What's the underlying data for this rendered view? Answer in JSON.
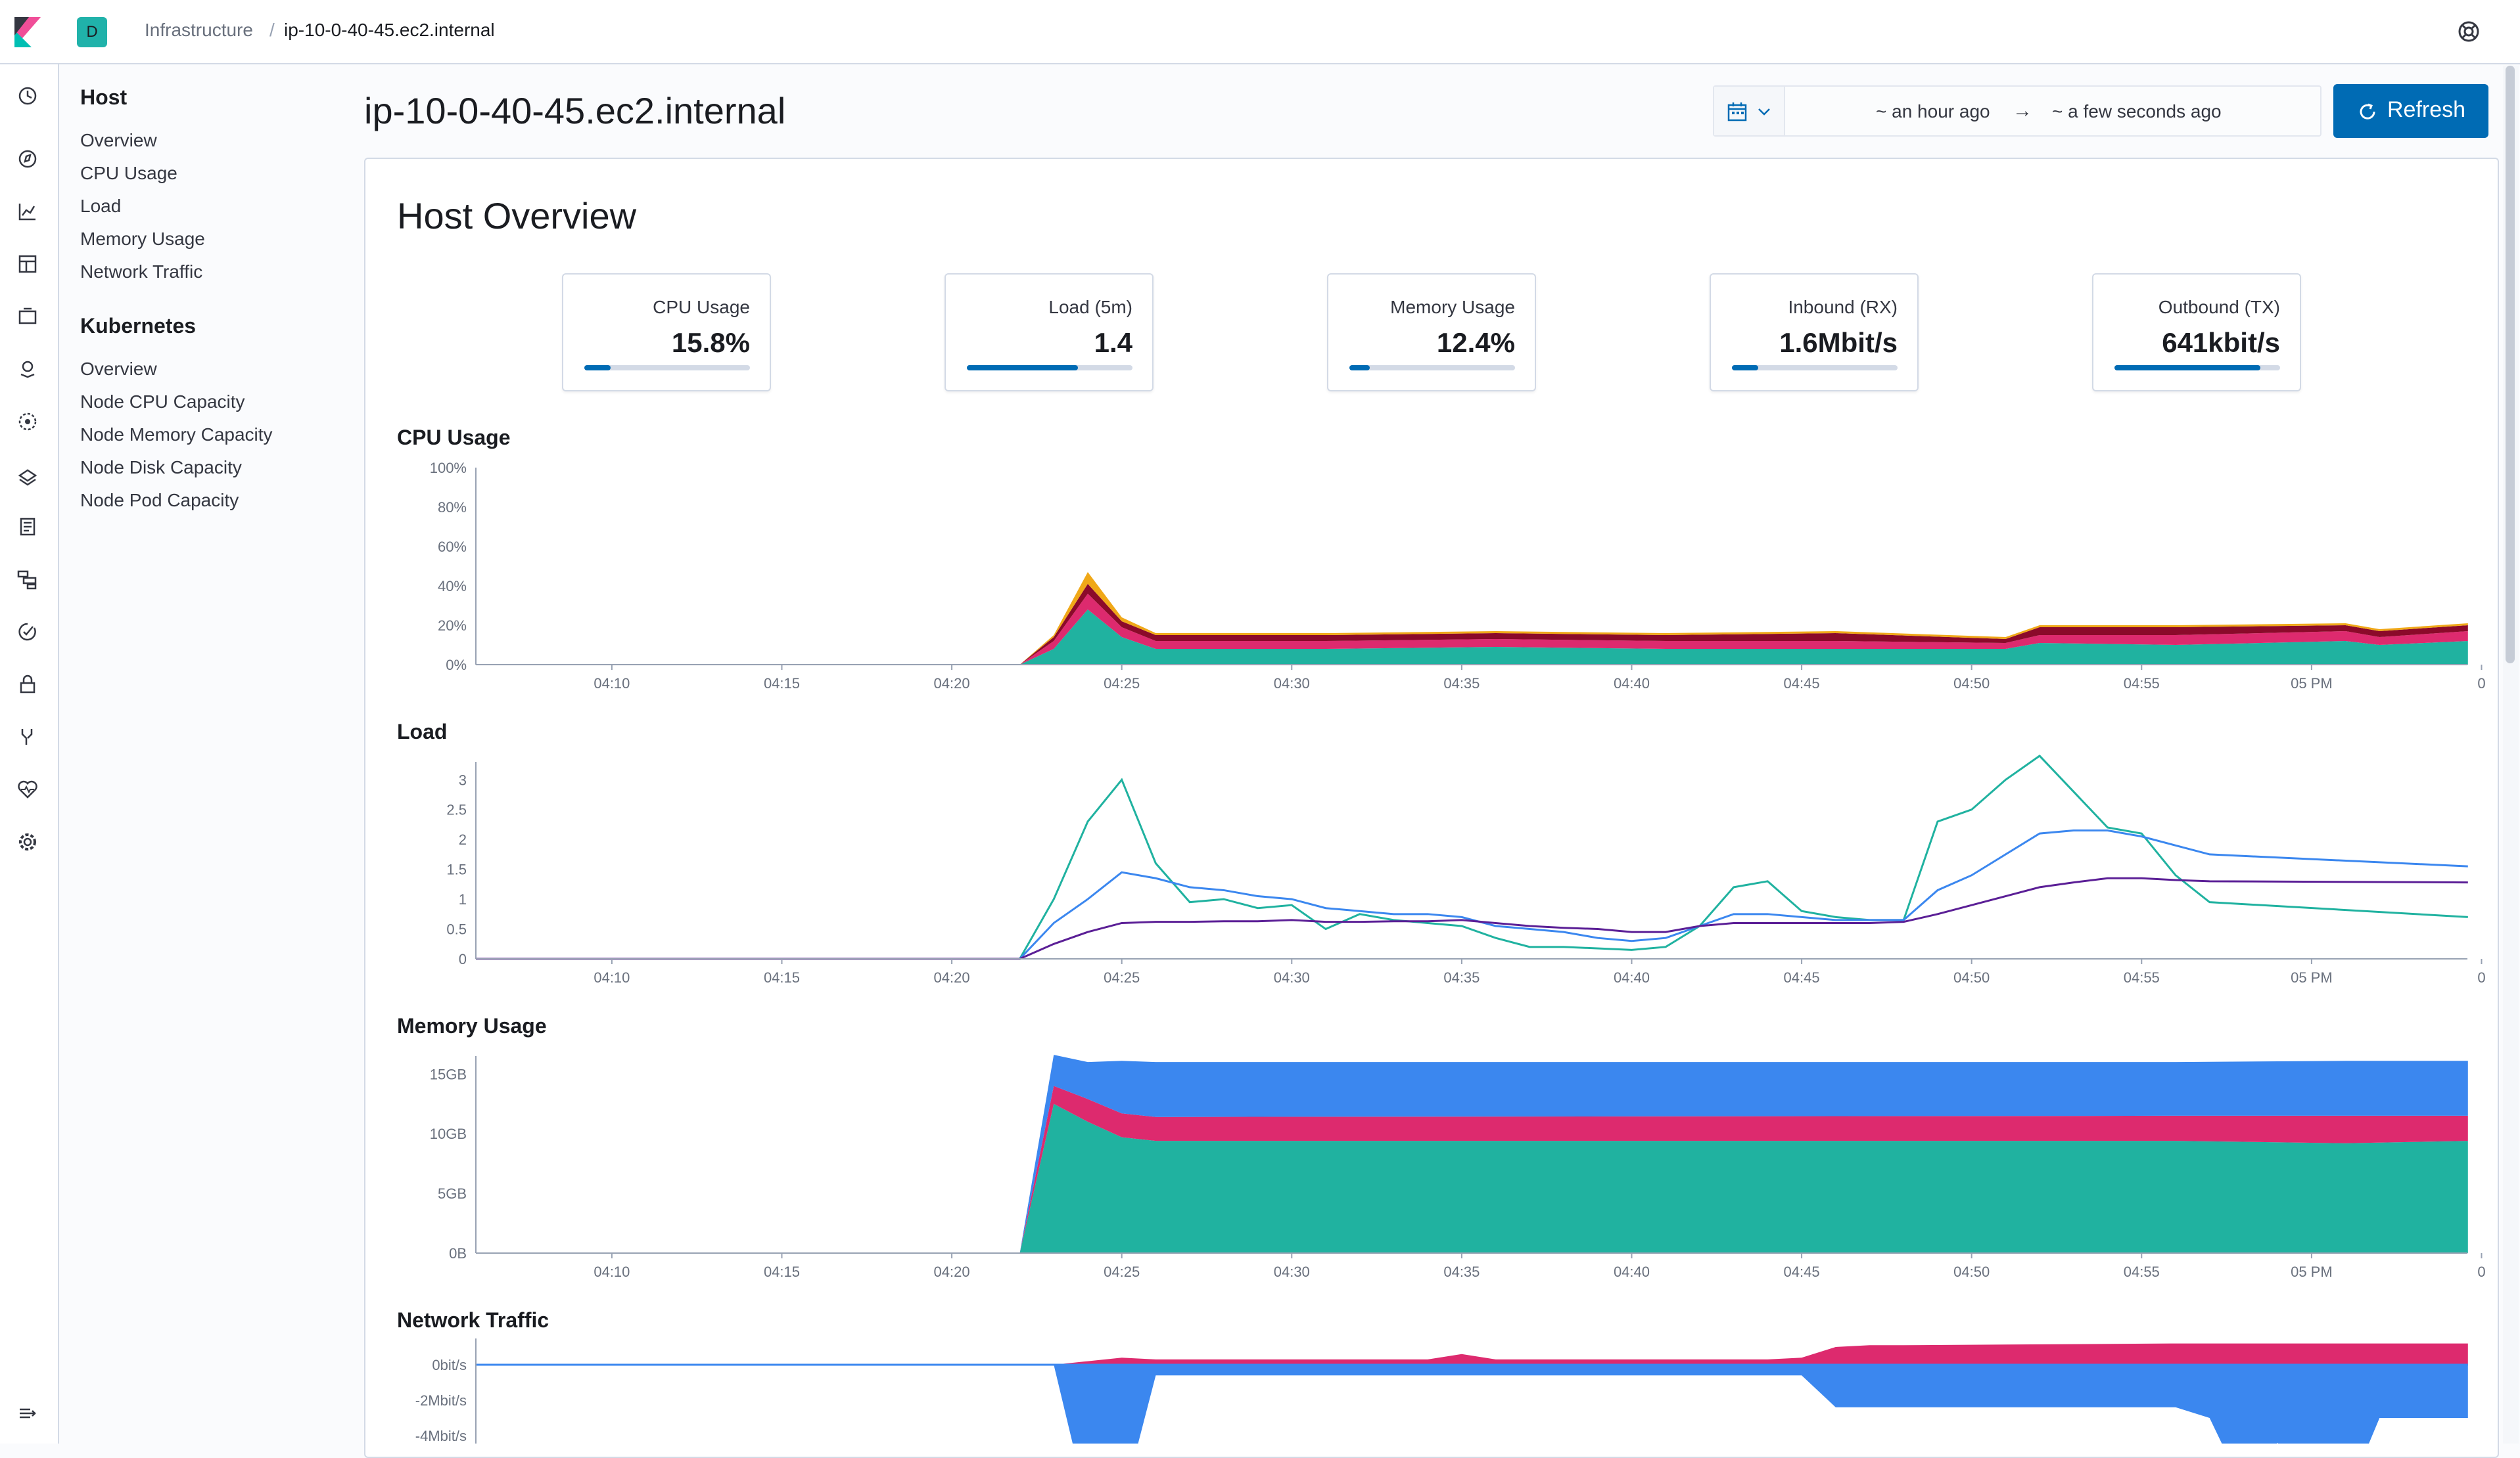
{
  "topbar": {
    "space_initial": "D",
    "breadcrumbs": [
      "Infrastructure",
      "ip-10-0-40-45.ec2.internal"
    ],
    "separator": "/"
  },
  "sidenav": {
    "sections": [
      {
        "heading": "Host",
        "items": [
          "Overview",
          "CPU Usage",
          "Load",
          "Memory Usage",
          "Network Traffic"
        ]
      },
      {
        "heading": "Kubernetes",
        "items": [
          "Overview",
          "Node CPU Capacity",
          "Node Memory Capacity",
          "Node Disk Capacity",
          "Node Pod Capacity"
        ]
      }
    ]
  },
  "page": {
    "title": "ip-10-0-40-45.ec2.internal"
  },
  "datepicker": {
    "start": "~ an hour ago",
    "arrow": "→",
    "end": "~ a few seconds ago"
  },
  "refresh": {
    "label": "Refresh"
  },
  "overview": {
    "title": "Host Overview",
    "metrics": [
      {
        "label": "CPU Usage",
        "value": "15.8%",
        "progress": 0.158
      },
      {
        "label": "Load (5m)",
        "value": "1.4",
        "progress": 0.67
      },
      {
        "label": "Memory Usage",
        "value": "12.4%",
        "progress": 0.124
      },
      {
        "label": "Inbound (RX)",
        "value": "1.6Mbit/s",
        "progress": 0.16
      },
      {
        "label": "Outbound (TX)",
        "value": "641kbit/s",
        "progress": 0.88
      }
    ]
  },
  "colors": {
    "accent": "#006bb4",
    "teal": "#20b2a0",
    "pink": "#dd2a6e",
    "darkred": "#8b0a2a",
    "orange": "#f0a818",
    "blue": "#3b87ef",
    "purple": "#5b1f96"
  },
  "chart_data": [
    {
      "type": "area",
      "title": "CPU Usage",
      "y_ticks": [
        "100%",
        "80%",
        "60%",
        "40%",
        "20%",
        "0%"
      ],
      "x_ticks": [
        "04:10",
        "04:15",
        "04:20",
        "04:25",
        "04:30",
        "04:35",
        "04:40",
        "04:45",
        "04:50",
        "04:55",
        "05 PM",
        "0"
      ],
      "ylim": [
        0,
        100
      ],
      "x": [
        0,
        16,
        17,
        18,
        19,
        20,
        25,
        30,
        35,
        40,
        45,
        46,
        50,
        55,
        56,
        60,
        58.6
      ],
      "series": [
        {
          "color": "teal",
          "values": [
            0,
            0,
            8,
            28,
            14,
            8,
            8,
            9,
            8,
            8,
            8,
            11,
            10,
            12,
            10,
            12,
            12
          ]
        },
        {
          "color": "pink",
          "values": [
            0,
            0,
            4,
            8,
            5,
            4,
            4,
            4,
            4,
            4,
            3,
            4,
            5,
            5,
            4,
            5,
            5
          ]
        },
        {
          "color": "darkred",
          "values": [
            0,
            0,
            2,
            5,
            3,
            3,
            3,
            3,
            3,
            4,
            2,
            4,
            4,
            3,
            3,
            3,
            3
          ]
        },
        {
          "color": "orange",
          "values": [
            0,
            0,
            1,
            6,
            2,
            1,
            1,
            1,
            1,
            1,
            1,
            1,
            1,
            1,
            1,
            1,
            1
          ]
        }
      ]
    },
    {
      "type": "line",
      "title": "Load",
      "y_ticks": [
        "3",
        "2.5",
        "2",
        "1.5",
        "1",
        "0.5",
        "0"
      ],
      "x_ticks": [
        "04:10",
        "04:15",
        "04:20",
        "04:25",
        "04:30",
        "04:35",
        "04:40",
        "04:45",
        "04:50",
        "04:55",
        "05 PM",
        "0"
      ],
      "ylim": [
        0,
        3.3
      ],
      "series": [
        {
          "color": "teal",
          "points": [
            [
              0,
              0
            ],
            [
              16,
              0
            ],
            [
              17,
              1
            ],
            [
              18,
              2.3
            ],
            [
              19,
              3.0
            ],
            [
              20,
              1.6
            ],
            [
              21,
              0.95
            ],
            [
              22,
              1.0
            ],
            [
              23,
              0.85
            ],
            [
              24,
              0.9
            ],
            [
              25,
              0.5
            ],
            [
              26,
              0.75
            ],
            [
              27,
              0.65
            ],
            [
              28,
              0.6
            ],
            [
              29,
              0.55
            ],
            [
              30,
              0.35
            ],
            [
              31,
              0.2
            ],
            [
              32,
              0.2
            ],
            [
              34,
              0.15
            ],
            [
              35,
              0.2
            ],
            [
              36,
              0.55
            ],
            [
              37,
              1.2
            ],
            [
              38,
              1.3
            ],
            [
              39,
              0.8
            ],
            [
              40,
              0.7
            ],
            [
              41,
              0.65
            ],
            [
              42,
              0.65
            ],
            [
              43,
              2.3
            ],
            [
              44,
              2.5
            ],
            [
              45,
              3.0
            ],
            [
              46,
              3.4
            ],
            [
              47,
              2.8
            ],
            [
              48,
              2.2
            ],
            [
              49,
              2.1
            ],
            [
              50,
              1.4
            ],
            [
              51,
              0.95
            ],
            [
              58.6,
              0.7
            ]
          ]
        },
        {
          "color": "blue",
          "points": [
            [
              0,
              0
            ],
            [
              16,
              0
            ],
            [
              17,
              0.6
            ],
            [
              18,
              1.0
            ],
            [
              19,
              1.45
            ],
            [
              20,
              1.35
            ],
            [
              21,
              1.2
            ],
            [
              22,
              1.15
            ],
            [
              23,
              1.05
            ],
            [
              24,
              1.0
            ],
            [
              25,
              0.85
            ],
            [
              26,
              0.8
            ],
            [
              27,
              0.75
            ],
            [
              28,
              0.75
            ],
            [
              29,
              0.7
            ],
            [
              30,
              0.55
            ],
            [
              31,
              0.5
            ],
            [
              32,
              0.45
            ],
            [
              33,
              0.35
            ],
            [
              34,
              0.3
            ],
            [
              35,
              0.35
            ],
            [
              36,
              0.55
            ],
            [
              37,
              0.75
            ],
            [
              38,
              0.75
            ],
            [
              39,
              0.7
            ],
            [
              40,
              0.65
            ],
            [
              41,
              0.65
            ],
            [
              42,
              0.65
            ],
            [
              43,
              1.15
            ],
            [
              44,
              1.4
            ],
            [
              45,
              1.75
            ],
            [
              46,
              2.1
            ],
            [
              47,
              2.15
            ],
            [
              48,
              2.15
            ],
            [
              49,
              2.05
            ],
            [
              50,
              1.9
            ],
            [
              51,
              1.75
            ],
            [
              58.6,
              1.55
            ]
          ]
        },
        {
          "color": "purple",
          "points": [
            [
              0,
              0
            ],
            [
              16,
              0
            ],
            [
              17,
              0.25
            ],
            [
              18,
              0.45
            ],
            [
              19,
              0.6
            ],
            [
              20,
              0.62
            ],
            [
              21,
              0.62
            ],
            [
              22,
              0.63
            ],
            [
              23,
              0.63
            ],
            [
              24,
              0.65
            ],
            [
              25,
              0.62
            ],
            [
              26,
              0.62
            ],
            [
              27,
              0.63
            ],
            [
              28,
              0.63
            ],
            [
              29,
              0.65
            ],
            [
              30,
              0.6
            ],
            [
              31,
              0.55
            ],
            [
              32,
              0.52
            ],
            [
              33,
              0.5
            ],
            [
              34,
              0.45
            ],
            [
              35,
              0.45
            ],
            [
              36,
              0.55
            ],
            [
              37,
              0.6
            ],
            [
              38,
              0.6
            ],
            [
              39,
              0.6
            ],
            [
              40,
              0.6
            ],
            [
              41,
              0.6
            ],
            [
              42,
              0.62
            ],
            [
              43,
              0.75
            ],
            [
              44,
              0.9
            ],
            [
              45,
              1.05
            ],
            [
              46,
              1.2
            ],
            [
              47,
              1.28
            ],
            [
              48,
              1.35
            ],
            [
              49,
              1.35
            ],
            [
              50,
              1.32
            ],
            [
              51,
              1.3
            ],
            [
              58.6,
              1.28
            ]
          ]
        }
      ]
    },
    {
      "type": "area",
      "title": "Memory Usage",
      "y_ticks": [
        "15GB",
        "10GB",
        "5GB",
        "0B"
      ],
      "x_ticks": [
        "04:10",
        "04:15",
        "04:20",
        "04:25",
        "04:30",
        "04:35",
        "04:40",
        "04:45",
        "04:50",
        "04:55",
        "05 PM",
        "0"
      ],
      "ylim": [
        0,
        16.5
      ],
      "x": [
        0,
        16,
        17,
        18,
        19,
        20,
        50,
        55,
        58.6
      ],
      "series": [
        {
          "color": "teal",
          "values": [
            0,
            0,
            12.5,
            11,
            9.7,
            9.4,
            9.4,
            9.2,
            9.4
          ]
        },
        {
          "color": "pink",
          "values": [
            0,
            0,
            1.5,
            1.9,
            2.0,
            2.0,
            2.1,
            2.3,
            2.1
          ]
        },
        {
          "color": "blue",
          "values": [
            0,
            0,
            2.6,
            3.1,
            4.4,
            4.6,
            4.5,
            4.6,
            4.6
          ]
        }
      ]
    },
    {
      "type": "area",
      "title": "Network Traffic",
      "y_ticks": [
        "0bit/s",
        "-2Mbit/s",
        "-4Mbit/s"
      ],
      "x_ticks": [],
      "ylim": [
        -4,
        0.5
      ],
      "x": [
        0,
        17,
        18,
        19,
        20,
        28,
        29,
        30,
        38,
        39,
        40,
        41,
        42,
        50,
        51,
        52,
        53,
        54,
        55,
        56,
        57,
        58.6
      ],
      "series": [
        {
          "color": "pink",
          "values": [
            0,
            0,
            0.1,
            0.2,
            0.15,
            0.15,
            0.3,
            0.15,
            0.15,
            0.2,
            0.5,
            0.55,
            0.55,
            0.6,
            0.6,
            0.6,
            0.6,
            0.6,
            0.6,
            0.6,
            0.6,
            0.6
          ]
        },
        {
          "color": "blue",
          "values": [
            0,
            0,
            -4,
            -4,
            -0.3,
            -0.3,
            -0.3,
            -0.3,
            -0.3,
            -0.3,
            -1.2,
            -1.2,
            -1.2,
            -1.2,
            -1.5,
            -3.5,
            -2.2,
            -3.5,
            -3.8,
            -1.5,
            -1.5,
            -1.5
          ]
        }
      ]
    }
  ]
}
